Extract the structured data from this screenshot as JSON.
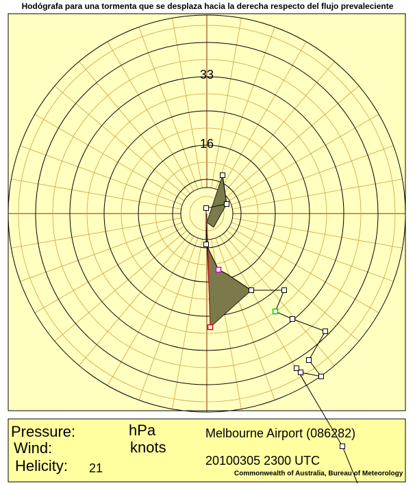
{
  "header": {
    "title": "Hodógrafa para una tormenta que se desplaza hacia la derecha respecto del flujo prevaleciente"
  },
  "plot": {
    "ring_labels": [
      "33",
      "16"
    ]
  },
  "info": {
    "pressure_label": "Pressure:",
    "pressure_unit": "hPa",
    "wind_label": "Wind:",
    "wind_unit": "knots",
    "helicity_label": "Helicity:",
    "helicity_value": "21",
    "station": "Melbourne Airport (086282)",
    "time": "20100305 2300 UTC",
    "credit": "Commonwealth of Australia, Bureau of Meteorology"
  }
}
